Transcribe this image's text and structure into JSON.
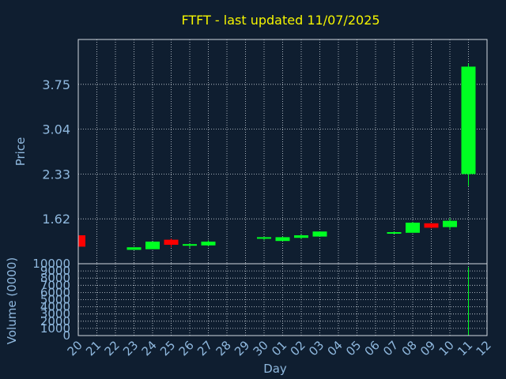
{
  "colors": {
    "background": "#0f1e30",
    "title": "#f5f500",
    "axis_text": "#8fb8de",
    "grid": "#d0d8e0",
    "up": "#00ff22",
    "down": "#ff0000",
    "volume": "#00ff22"
  },
  "chart_data": {
    "type": "candlestick",
    "title": "FTFT - last updated 11/07/2025",
    "price_panel": {
      "ylabel": "Price",
      "yticks": [
        1.62,
        2.33,
        3.04,
        3.75
      ],
      "ytick_labels": [
        "1.62",
        "2.33",
        "3.04",
        "3.75"
      ],
      "ylim": [
        0.91,
        4.46
      ],
      "grid": true
    },
    "volume_panel": {
      "ylabel": "Volume (0000)",
      "yticks": [
        0,
        1000,
        2000,
        3000,
        4000,
        5000,
        6000,
        7000,
        8000,
        9000,
        10000
      ],
      "ytick_labels": [
        "0",
        "1000",
        "2000",
        "3000",
        "4000",
        "5000",
        "6000",
        "7000",
        "8000",
        "9000",
        "10000"
      ],
      "ylim": [
        0,
        10000
      ],
      "grid": true
    },
    "xlabel": "Day",
    "xticks": [
      "20",
      "21",
      "22",
      "23",
      "24",
      "25",
      "26",
      "27",
      "28",
      "29",
      "30",
      "01",
      "02",
      "03",
      "04",
      "05",
      "06",
      "07",
      "08",
      "09",
      "10",
      "11",
      "12"
    ],
    "candles": [
      {
        "day": "20",
        "open": 1.36,
        "close": 1.18,
        "high": 1.36,
        "low": 1.18
      },
      {
        "day": "23",
        "open": 1.13,
        "close": 1.17,
        "high": 1.17,
        "low": 1.13
      },
      {
        "day": "24",
        "open": 1.14,
        "close": 1.26,
        "high": 1.26,
        "low": 1.14
      },
      {
        "day": "25",
        "open": 1.29,
        "close": 1.21,
        "high": 1.31,
        "low": 1.17
      },
      {
        "day": "26",
        "open": 1.2,
        "close": 1.22,
        "high": 1.23,
        "low": 1.16
      },
      {
        "day": "27",
        "open": 1.2,
        "close": 1.26,
        "high": 1.28,
        "low": 1.19
      },
      {
        "day": "30",
        "open": 1.33,
        "close": 1.33,
        "high": 1.33,
        "low": 1.28
      },
      {
        "day": "01",
        "open": 1.27,
        "close": 1.33,
        "high": 1.34,
        "low": 1.27
      },
      {
        "day": "02",
        "open": 1.32,
        "close": 1.36,
        "high": 1.37,
        "low": 1.3
      },
      {
        "day": "03",
        "open": 1.34,
        "close": 1.42,
        "high": 1.42,
        "low": 1.34
      },
      {
        "day": "07",
        "open": 1.4,
        "close": 1.41,
        "high": 1.42,
        "low": 1.39
      },
      {
        "day": "08",
        "open": 1.4,
        "close": 1.56,
        "high": 1.57,
        "low": 1.4
      },
      {
        "day": "09",
        "open": 1.55,
        "close": 1.48,
        "high": 1.55,
        "low": 1.47
      },
      {
        "day": "10",
        "open": 1.49,
        "close": 1.59,
        "high": 1.63,
        "low": 1.45
      },
      {
        "day": "11",
        "open": 2.33,
        "close": 4.03,
        "high": 4.08,
        "low": 2.14
      }
    ],
    "volumes": [
      {
        "day": "11",
        "value": 9500
      }
    ]
  }
}
